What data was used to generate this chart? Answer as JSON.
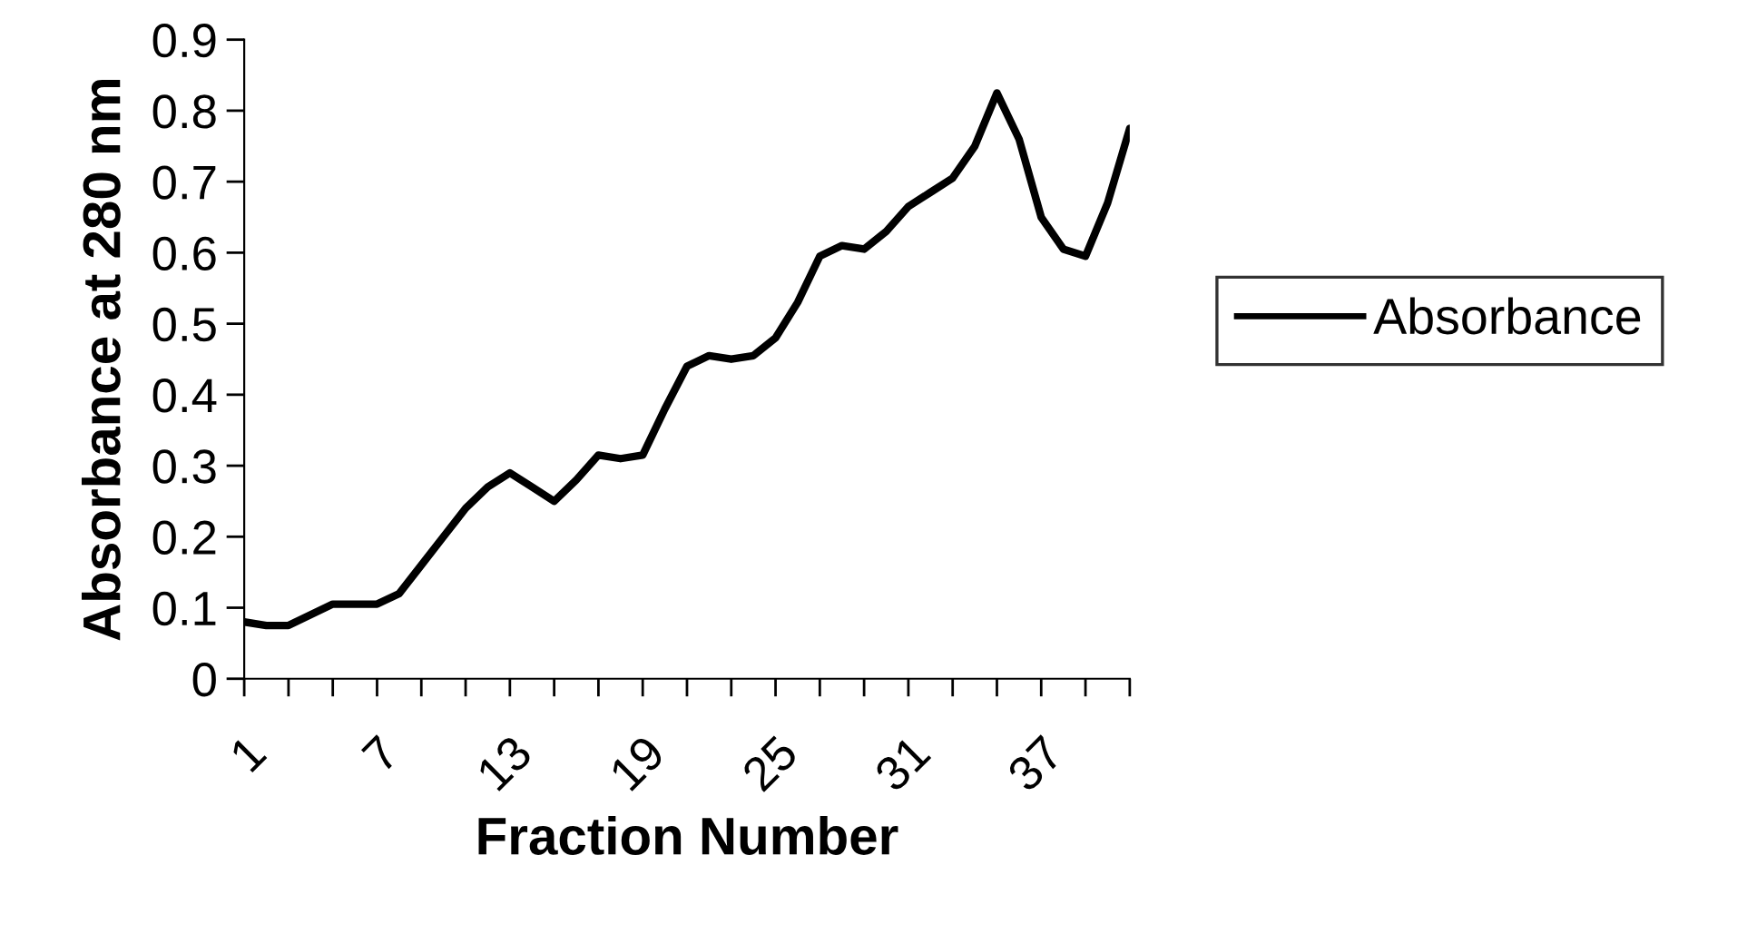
{
  "chart_data": {
    "type": "line",
    "xlabel": "Fraction Number",
    "ylabel": "Absorbance at 280 nm",
    "categories": [
      "1",
      null,
      null,
      null,
      null,
      null,
      "7",
      null,
      null,
      null,
      null,
      null,
      "13",
      null,
      null,
      null,
      null,
      null,
      "19",
      null,
      null,
      null,
      null,
      null,
      "25",
      null,
      null,
      null,
      null,
      null,
      "31",
      null,
      null,
      null,
      null,
      null,
      "37",
      null,
      null,
      null,
      null
    ],
    "series": [
      {
        "name": "Absorbance",
        "color": "#000000",
        "values": [
          0.08,
          0.075,
          0.075,
          0.09,
          0.105,
          0.105,
          0.105,
          0.12,
          0.16,
          0.2,
          0.24,
          0.27,
          0.29,
          0.27,
          0.25,
          0.28,
          0.315,
          0.31,
          0.315,
          0.38,
          0.44,
          0.455,
          0.45,
          0.455,
          0.48,
          0.53,
          0.595,
          0.61,
          0.605,
          0.63,
          0.665,
          0.685,
          0.705,
          0.75,
          0.825,
          0.76,
          0.65,
          0.605,
          0.595,
          0.67,
          0.775
        ]
      }
    ],
    "ylim": [
      0,
      0.9
    ],
    "yticks": [
      0,
      0.1,
      0.2,
      0.3,
      0.4,
      0.5,
      0.6,
      0.7,
      0.8,
      0.9
    ],
    "grid": false,
    "legend": "right",
    "marker": "none",
    "line_style": "solid"
  }
}
